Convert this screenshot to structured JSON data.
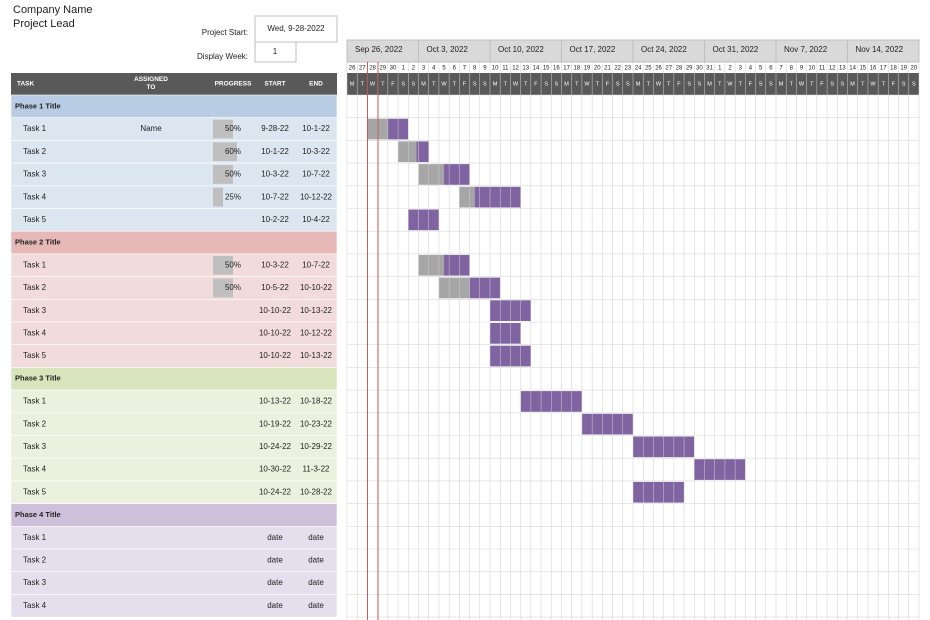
{
  "header": {
    "company": "Company Name",
    "lead": "Project Lead",
    "start_label": "Project Start:",
    "start_value": "Wed, 9-28-2022",
    "week_label": "Display Week:",
    "week_value": 1
  },
  "columns": [
    "TASK",
    "ASSIGNED TO",
    "PROGRESS",
    "START",
    "END"
  ],
  "timeline": {
    "weeks": [
      "Sep 26, 2022",
      "Oct 3, 2022",
      "Oct 10, 2022",
      "Oct 17, 2022",
      "Oct 24, 2022",
      "Oct 31, 2022",
      "Nov 7, 2022",
      "Nov 14, 2022"
    ],
    "days": [
      26,
      27,
      28,
      29,
      30,
      1,
      2,
      3,
      4,
      5,
      6,
      7,
      8,
      9,
      10,
      11,
      12,
      13,
      14,
      15,
      16,
      17,
      18,
      19,
      20,
      21,
      22,
      23,
      24,
      25,
      26,
      27,
      28,
      29,
      30,
      31,
      1,
      2,
      3,
      4,
      5,
      6,
      7,
      8,
      9,
      10,
      11,
      12,
      13,
      14,
      15,
      16,
      17,
      18,
      19,
      20
    ],
    "weekdays": [
      "M",
      "T",
      "W",
      "T",
      "F",
      "S",
      "S",
      "M",
      "T",
      "W",
      "T",
      "F",
      "S",
      "S",
      "M",
      "T",
      "W",
      "T",
      "F",
      "S",
      "S",
      "M",
      "T",
      "W",
      "T",
      "F",
      "S",
      "S",
      "M",
      "T",
      "W",
      "T",
      "F",
      "S",
      "S",
      "M",
      "T",
      "W",
      "T",
      "F",
      "S",
      "S",
      "M",
      "T",
      "W",
      "T",
      "F",
      "S",
      "S",
      "M",
      "T",
      "W",
      "T",
      "F",
      "S",
      "S"
    ]
  },
  "phases": [
    {
      "title": "Phase 1 Title",
      "tasks": [
        {
          "name": "Task 1",
          "assigned": "Name",
          "progress": {
            "value": 50,
            "label": "50%"
          },
          "start": "9-28-22",
          "end": "10-1-22"
        },
        {
          "name": "Task 2",
          "progress": {
            "value": 60,
            "label": "60%"
          },
          "start": "10-1-22",
          "end": "10-3-22"
        },
        {
          "name": "Task 3",
          "progress": {
            "value": 50,
            "label": "50%"
          },
          "start": "10-3-22",
          "end": "10-7-22"
        },
        {
          "name": "Task 4",
          "progress": {
            "value": 25,
            "label": "25%"
          },
          "start": "10-7-22",
          "end": "10-12-22"
        },
        {
          "name": "Task 5",
          "start": "10-2-22",
          "end": "10-4-22"
        }
      ]
    },
    {
      "title": "Phase 2 Title",
      "tasks": [
        {
          "name": "Task 1",
          "progress": {
            "value": 50,
            "label": "50%"
          },
          "start": "10-3-22",
          "end": "10-7-22"
        },
        {
          "name": "Task 2",
          "progress": {
            "value": 50,
            "label": "50%"
          },
          "start": "10-5-22",
          "end": "10-10-22"
        },
        {
          "name": "Task 3",
          "start": "10-10-22",
          "end": "10-13-22"
        },
        {
          "name": "Task 4",
          "start": "10-10-22",
          "end": "10-12-22"
        },
        {
          "name": "Task 5",
          "start": "10-10-22",
          "end": "10-13-22"
        }
      ]
    },
    {
      "title": "Phase 3 Title",
      "tasks": [
        {
          "name": "Task 1",
          "start": "10-13-22",
          "end": "10-18-22"
        },
        {
          "name": "Task 2",
          "start": "10-19-22",
          "end": "10-23-22"
        },
        {
          "name": "Task 3",
          "start": "10-24-22",
          "end": "10-29-22"
        },
        {
          "name": "Task 4",
          "start": "10-30-22",
          "end": "11-3-22"
        },
        {
          "name": "Task 5",
          "start": "10-24-22",
          "end": "10-28-22"
        }
      ]
    },
    {
      "title": "Phase 4 Title",
      "tasks": [
        {
          "name": "Task 1",
          "start": "date",
          "end": "date"
        },
        {
          "name": "Task 2",
          "start": "date",
          "end": "date"
        },
        {
          "name": "Task 3",
          "start": "date",
          "end": "date"
        },
        {
          "name": "Task 4",
          "start": "date",
          "end": "date"
        }
      ]
    }
  ]
}
